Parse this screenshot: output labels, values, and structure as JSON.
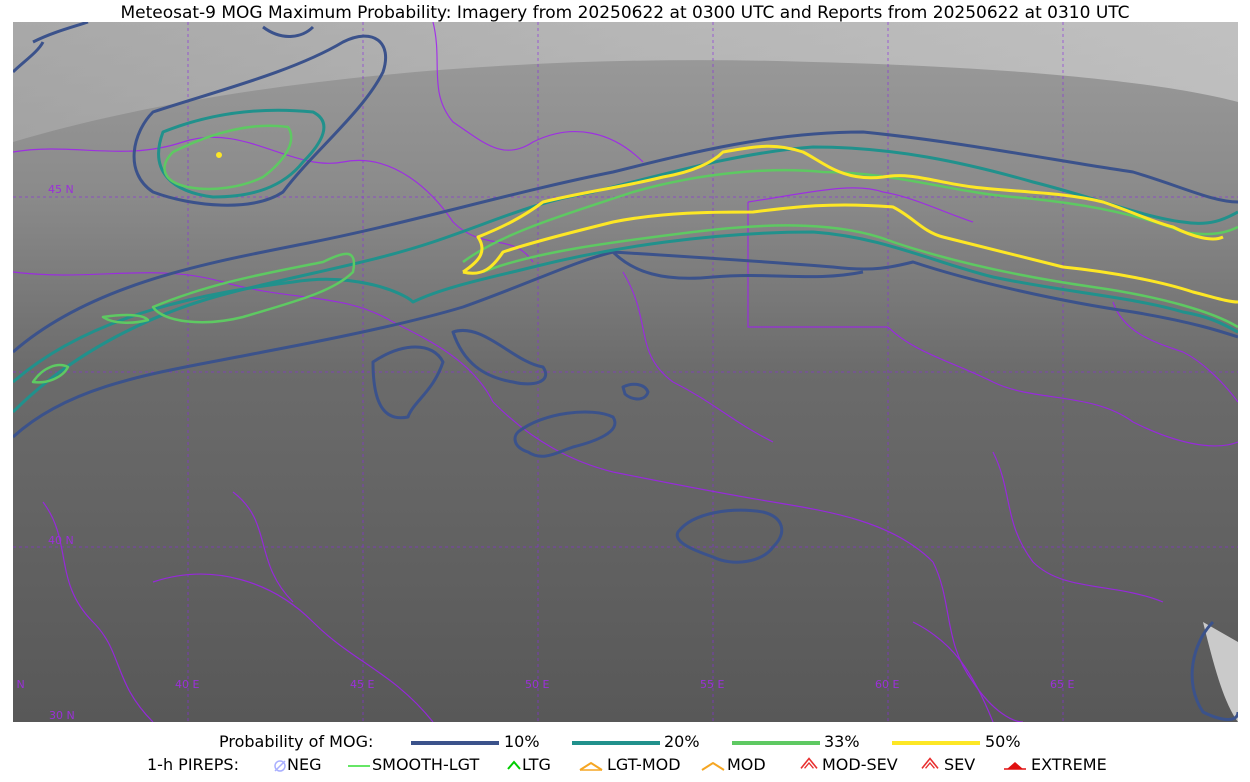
{
  "title": "Meteosat-9 MOG Maximum Probability: Imagery from 20250622 at 0300 UTC and Reports from 20250622 at 0310 UTC",
  "map": {
    "lat_labels": [
      "45 N",
      "40 N",
      "35 N",
      "30 N"
    ],
    "lon_labels": [
      "40 E",
      "45 E",
      "50 E",
      "55 E",
      "60 E",
      "65 E"
    ],
    "contour_colors": {
      "p10": "#3b528b",
      "p20": "#21918c",
      "p33": "#5ec962",
      "p50": "#fde725"
    },
    "border_color": "#a020f0"
  },
  "legend": {
    "probability": {
      "label": "Probability of MOG:",
      "items": [
        {
          "label": "10%",
          "color": "#3b528b"
        },
        {
          "label": "20%",
          "color": "#21918c"
        },
        {
          "label": "33%",
          "color": "#5ec962"
        },
        {
          "label": "50%",
          "color": "#fde725"
        }
      ]
    },
    "pireps": {
      "label": "1-h PIREPS:",
      "items": [
        {
          "label": "NEG",
          "icon": "neg-icon",
          "color": "#aab0ff"
        },
        {
          "label": "SMOOTH-LGT",
          "icon": "smooth-lgt-icon",
          "color": "#33dd33"
        },
        {
          "label": "LTG",
          "icon": "ltg-icon",
          "color": "#00cc00"
        },
        {
          "label": "LGT-MOD",
          "icon": "lgt-mod-icon",
          "color": "#f5a623"
        },
        {
          "label": "MOD",
          "icon": "mod-icon",
          "color": "#f5a623"
        },
        {
          "label": "MOD-SEV",
          "icon": "mod-sev-icon",
          "color": "#e83030"
        },
        {
          "label": "SEV",
          "icon": "sev-icon",
          "color": "#e83030"
        },
        {
          "label": "EXTREME",
          "icon": "extreme-icon",
          "color": "#e01010"
        }
      ]
    }
  }
}
